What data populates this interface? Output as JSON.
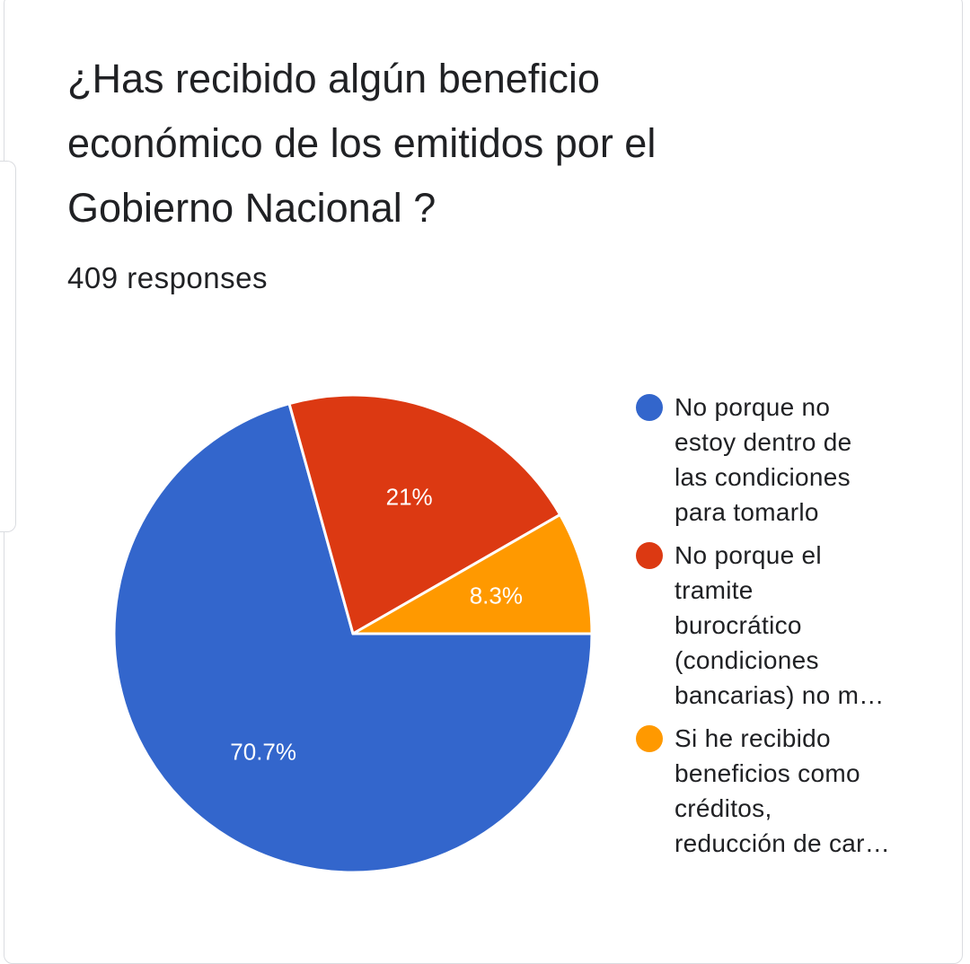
{
  "title": "¿Has recibido algún beneficio económico de los emitidos por el Gobierno Nacional ?",
  "responses": "409 responses",
  "chart_data": {
    "type": "pie",
    "slices": [
      {
        "label": "No porque no estoy dentro de las condiciones para tomarlo",
        "legend_text": [
          "No porque no",
          "estoy dentro de",
          "las condiciones",
          "para tomarlo"
        ],
        "value": 70.7,
        "display": "70.7%",
        "color": "#3366cc"
      },
      {
        "label": "No porque el tramite burocrático (condiciones bancarias) no m…",
        "legend_text": [
          "No porque el",
          "tramite",
          "burocrático",
          "(condiciones",
          "bancarias) no m…"
        ],
        "value": 21,
        "display": "21%",
        "color": "#dc3912"
      },
      {
        "label": "Si he recibido beneficios como créditos, reducción de car…",
        "legend_text": [
          "Si he recibido",
          "beneficios como",
          "créditos,",
          "reducción de car…"
        ],
        "value": 8.3,
        "display": "8.3%",
        "color": "#ff9900"
      }
    ],
    "legend_position": "right"
  }
}
